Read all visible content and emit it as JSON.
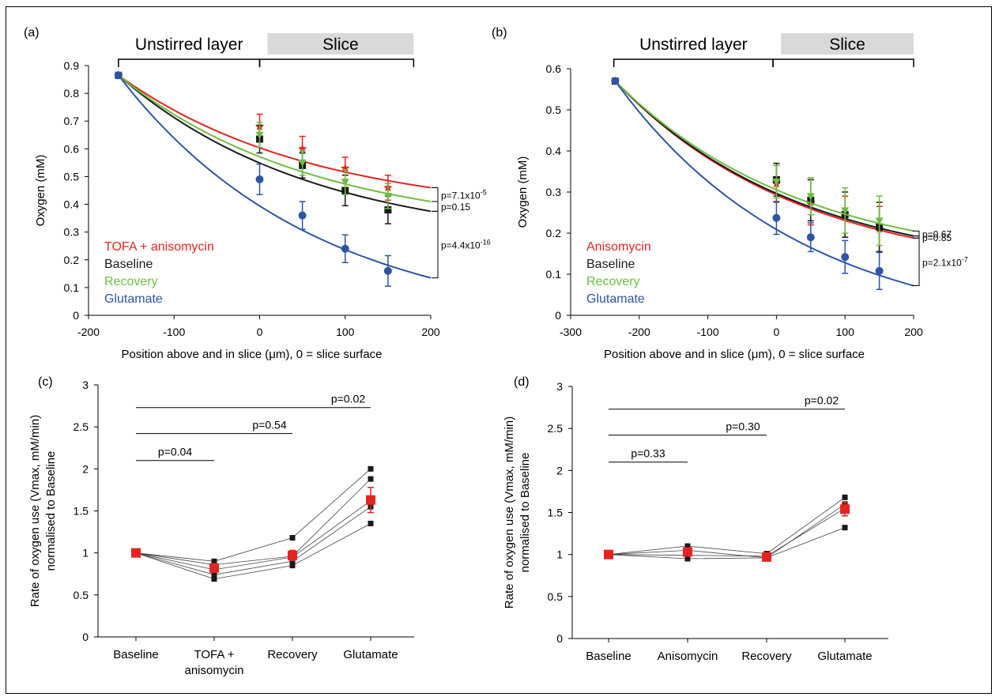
{
  "colors": {
    "red": "#e52421",
    "black": "#1a1a1a",
    "green": "#6cbf3f",
    "blue": "#2d54a5",
    "slice_bar": "#d9d9d9"
  },
  "chart_data": [
    {
      "panel": "(a)",
      "type": "scatter",
      "xlabel": "Position above and in slice (μm), 0 = slice surface",
      "ylabel": "Oxygen (mM)",
      "xlim": [
        -200,
        200
      ],
      "ylim": [
        0,
        0.9
      ],
      "xticks": [
        -200,
        -100,
        0,
        100,
        200
      ],
      "xtick_labels": [
        "-200",
        "-100",
        "0",
        "100",
        "200"
      ],
      "yticks": [
        0,
        0.1,
        0.2,
        0.3,
        0.4,
        0.5,
        0.6,
        0.7,
        0.8,
        0.9
      ],
      "ytick_labels": [
        "0",
        "0.1",
        "0.2",
        "0.3",
        "0.4",
        "0.5",
        "0.6",
        "0.7",
        "0.8",
        "0.9"
      ],
      "regions": [
        {
          "label": "Unstirred layer",
          "from": -165,
          "to": 0,
          "shaded": false
        },
        {
          "label": "Slice",
          "from": 0,
          "to": 180,
          "shaded": true
        }
      ],
      "legend": [
        "TOFA + anisomycin",
        "Baseline",
        "Recovery",
        "Glutamate"
      ],
      "series": [
        {
          "name": "TOFA + anisomycin",
          "color": "red",
          "marker": "star",
          "x": [
            -165,
            0,
            50,
            100,
            150
          ],
          "y": [
            0.865,
            0.68,
            0.6,
            0.53,
            0.46
          ],
          "err": [
            0,
            0.045,
            0.045,
            0.04,
            0.045
          ],
          "fit_end": 0.46
        },
        {
          "name": "Baseline",
          "color": "black",
          "marker": "square",
          "x": [
            -165,
            0,
            50,
            100,
            150
          ],
          "y": [
            0.865,
            0.635,
            0.54,
            0.45,
            0.38
          ],
          "err": [
            0,
            0.05,
            0.045,
            0.055,
            0.05
          ],
          "fit_end": 0.375
        },
        {
          "name": "Recovery",
          "color": "green",
          "marker": "triangle",
          "x": [
            -165,
            0,
            50,
            100,
            150
          ],
          "y": [
            0.865,
            0.65,
            0.55,
            0.48,
            0.43
          ],
          "err": [
            0,
            0.045,
            0.045,
            0.045,
            0.045
          ],
          "fit_end": 0.41
        },
        {
          "name": "Glutamate",
          "color": "blue",
          "marker": "circle",
          "x": [
            -165,
            0,
            50,
            100,
            150
          ],
          "y": [
            0.865,
            0.49,
            0.36,
            0.24,
            0.16
          ],
          "err": [
            0,
            0.055,
            0.05,
            0.05,
            0.055
          ],
          "fit_end": 0.135
        }
      ],
      "annotations": [
        {
          "text": "p=7.1x10",
          "sup": "-5",
          "y1": 0.46,
          "y2": 0.41
        },
        {
          "text": "p=0.15",
          "sup": "",
          "y1": 0.41,
          "y2": 0.375
        },
        {
          "text": "p=4.4x10",
          "sup": "-16",
          "y1": 0.375,
          "y2": 0.135
        }
      ]
    },
    {
      "panel": "(b)",
      "type": "scatter",
      "xlabel": "Position above and in slice (μm), 0 = slice surface",
      "ylabel": "Oxygen (mM)",
      "xlim": [
        -300,
        200
      ],
      "ylim": [
        0,
        0.6
      ],
      "xticks": [
        -300,
        -200,
        -100,
        0,
        100,
        200
      ],
      "xtick_labels": [
        "-300",
        "-200",
        "-100",
        "0",
        "100",
        "200"
      ],
      "yticks": [
        0,
        0.1,
        0.2,
        0.3,
        0.4,
        0.5,
        0.6
      ],
      "ytick_labels": [
        "0",
        "0.1",
        "0.2",
        "0.3",
        "0.4",
        "0.5",
        "0.6"
      ],
      "regions": [
        {
          "label": "Unstirred layer",
          "from": -237,
          "to": -5,
          "shaded": false
        },
        {
          "label": "Slice",
          "from": -5,
          "to": 200,
          "shaded": true
        }
      ],
      "legend": [
        "Anisomycin",
        "Baseline",
        "Recovery",
        "Glutamate"
      ],
      "series": [
        {
          "name": "Anisomycin",
          "color": "red",
          "marker": "star",
          "x": [
            -235,
            0,
            50,
            100,
            150
          ],
          "y": [
            0.57,
            0.32,
            0.275,
            0.24,
            0.21
          ],
          "err": [
            0,
            0.045,
            0.055,
            0.05,
            0.055
          ],
          "fit_end": 0.188
        },
        {
          "name": "Baseline",
          "color": "black",
          "marker": "square",
          "x": [
            -235,
            0,
            50,
            100,
            150
          ],
          "y": [
            0.57,
            0.33,
            0.28,
            0.245,
            0.215
          ],
          "err": [
            0,
            0.04,
            0.05,
            0.055,
            0.06
          ],
          "fit_end": 0.193
        },
        {
          "name": "Recovery",
          "color": "green",
          "marker": "triangle",
          "x": [
            -235,
            0,
            50,
            100,
            150
          ],
          "y": [
            0.57,
            0.325,
            0.29,
            0.255,
            0.23
          ],
          "err": [
            0,
            0.04,
            0.045,
            0.055,
            0.06
          ],
          "fit_end": 0.205
        },
        {
          "name": "Glutamate",
          "color": "blue",
          "marker": "circle",
          "x": [
            -235,
            0,
            50,
            100,
            150
          ],
          "y": [
            0.57,
            0.237,
            0.19,
            0.142,
            0.108
          ],
          "err": [
            0,
            0.04,
            0.035,
            0.04,
            0.045
          ],
          "fit_end": 0.072
        }
      ],
      "annotations": [
        {
          "text": "p=0.67",
          "sup": "",
          "y1": 0.205,
          "y2": 0.193
        },
        {
          "text": "p=0.85",
          "sup": "",
          "y1": 0.193,
          "y2": 0.188
        },
        {
          "text": "p=2.1x10",
          "sup": "-7",
          "y1": 0.188,
          "y2": 0.072
        }
      ]
    },
    {
      "panel": "(c)",
      "type": "line",
      "ylabel_lines": [
        "Rate of oxygen use (Vmax, mM/min)",
        "normalised to Baseline"
      ],
      "categories": [
        "Baseline",
        "TOFA + anisomycin",
        "Recovery",
        "Glutamate"
      ],
      "category_label_lines": [
        [
          "Baseline"
        ],
        [
          "TOFA +",
          "anisomycin"
        ],
        [
          "Recovery"
        ],
        [
          "Glutamate"
        ]
      ],
      "ylim": [
        0,
        3
      ],
      "yticks": [
        0,
        0.5,
        1,
        1.5,
        2,
        2.5,
        3
      ],
      "ytick_labels": [
        "0",
        "0.5",
        "1",
        "1.5",
        "2",
        "2.5",
        "3"
      ],
      "individual": [
        [
          1,
          0.9,
          1.18,
          2.0
        ],
        [
          1,
          0.86,
          0.96,
          1.88
        ],
        [
          1,
          0.8,
          0.95,
          1.62
        ],
        [
          1,
          0.74,
          0.9,
          1.55
        ],
        [
          1,
          0.69,
          0.85,
          1.35
        ]
      ],
      "mean": [
        1,
        0.82,
        0.97,
        1.63
      ],
      "mean_err": [
        0,
        0.05,
        0.06,
        0.15
      ],
      "brackets": [
        {
          "from": 0,
          "to": 1,
          "y": 2.1,
          "label": "p=0.04"
        },
        {
          "from": 0,
          "to": 2,
          "y": 2.42,
          "label": "p=0.54"
        },
        {
          "from": 0,
          "to": 3,
          "y": 2.73,
          "label": "p=0.02"
        }
      ]
    },
    {
      "panel": "(d)",
      "type": "line",
      "ylabel_lines": [
        "Rate of oxygen use (Vmax, mM/min)",
        "normalised to Baseline"
      ],
      "categories": [
        "Baseline",
        "Anisomycin",
        "Recovery",
        "Glutamate"
      ],
      "category_label_lines": [
        [
          "Baseline"
        ],
        [
          "Anisomycin"
        ],
        [
          "Recovery"
        ],
        [
          "Glutamate"
        ]
      ],
      "ylim": [
        0,
        3
      ],
      "yticks": [
        0,
        0.5,
        1,
        1.5,
        2,
        2.5,
        3
      ],
      "ytick_labels": [
        "0",
        "0.5",
        "1",
        "1.5",
        "2",
        "2.5",
        "3"
      ],
      "individual": [
        [
          1,
          1.1,
          1.01,
          1.68
        ],
        [
          1,
          1.05,
          0.96,
          1.6
        ],
        [
          1,
          0.99,
          0.98,
          1.55
        ],
        [
          1,
          0.95,
          0.96,
          1.32
        ]
      ],
      "mean": [
        1,
        1.03,
        0.97,
        1.54
      ],
      "mean_err": [
        0,
        0.04,
        0.04,
        0.08
      ],
      "brackets": [
        {
          "from": 0,
          "to": 1,
          "y": 2.1,
          "label": "p=0.33"
        },
        {
          "from": 0,
          "to": 2,
          "y": 2.42,
          "label": "p=0.30"
        },
        {
          "from": 0,
          "to": 3,
          "y": 2.73,
          "label": "p=0.02"
        }
      ]
    }
  ]
}
